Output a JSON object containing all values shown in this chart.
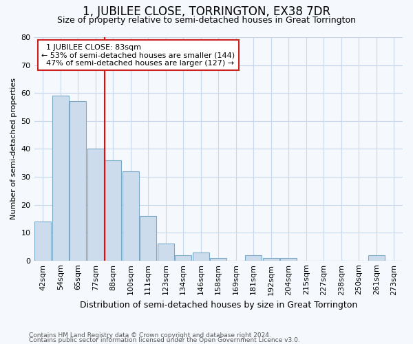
{
  "title": "1, JUBILEE CLOSE, TORRINGTON, EX38 7DR",
  "subtitle": "Size of property relative to semi-detached houses in Great Torrington",
  "xlabel": "Distribution of semi-detached houses by size in Great Torrington",
  "ylabel": "Number of semi-detached properties",
  "footnote1": "Contains HM Land Registry data © Crown copyright and database right 2024.",
  "footnote2": "Contains public sector information licensed under the Open Government Licence v3.0.",
  "categories": [
    "42sqm",
    "54sqm",
    "65sqm",
    "77sqm",
    "88sqm",
    "100sqm",
    "111sqm",
    "123sqm",
    "134sqm",
    "146sqm",
    "158sqm",
    "169sqm",
    "181sqm",
    "192sqm",
    "204sqm",
    "215sqm",
    "227sqm",
    "238sqm",
    "250sqm",
    "261sqm",
    "273sqm"
  ],
  "values": [
    14,
    59,
    57,
    40,
    36,
    32,
    16,
    6,
    2,
    3,
    1,
    0,
    2,
    1,
    1,
    0,
    0,
    0,
    0,
    2,
    0
  ],
  "bar_color": "#ccdcec",
  "bar_edge_color": "#7aaac8",
  "vline_x_index": 3.5,
  "ylim": [
    0,
    80
  ],
  "yticks": [
    0,
    10,
    20,
    30,
    40,
    50,
    60,
    70,
    80
  ],
  "property_label": "1 JUBILEE CLOSE: 83sqm",
  "pct_smaller": 53,
  "count_smaller": 144,
  "pct_larger": 47,
  "count_larger": 127,
  "annotation_box_edgecolor": "#cc2222",
  "background_color": "#f5f8fc",
  "grid_color": "#c8d8ec",
  "title_fontsize": 12,
  "subtitle_fontsize": 9,
  "axis_label_fontsize": 9,
  "tick_fontsize": 8,
  "annotation_fontsize": 8,
  "ylabel_fontsize": 8,
  "footnote_fontsize": 6.5
}
